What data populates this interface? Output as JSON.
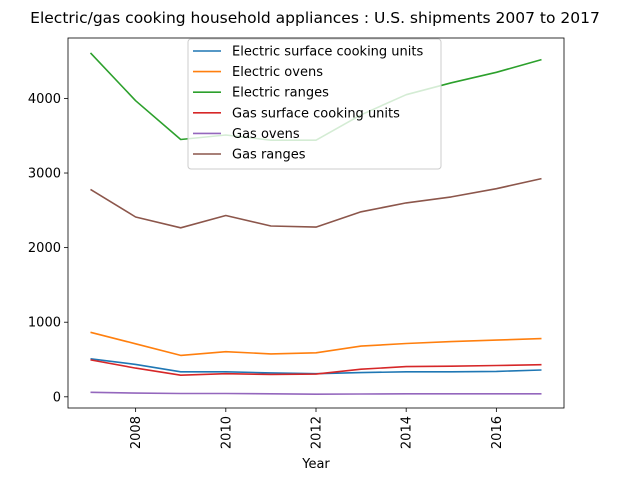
{
  "chart_data": {
    "type": "line",
    "title": "Electric/gas cooking household appliances : U.S. shipments 2007 to 2017",
    "xlabel": "Year",
    "ylabel": "",
    "x": [
      2007,
      2008,
      2009,
      2010,
      2011,
      2012,
      2013,
      2014,
      2015,
      2016,
      2017
    ],
    "xlim": [
      2006.5,
      2017.5
    ],
    "ylim": [
      -150,
      4810
    ],
    "x_ticks": [
      2008,
      2010,
      2012,
      2014,
      2016
    ],
    "y_ticks": [
      0,
      1000,
      2000,
      3000,
      4000
    ],
    "x_tick_rotation": "vertical",
    "grid": false,
    "legend_position": "top-center",
    "series": [
      {
        "name": "Electric surface cooking units",
        "color": "#1f77b4",
        "values": [
          510,
          435,
          335,
          335,
          320,
          310,
          325,
          335,
          335,
          340,
          360
        ]
      },
      {
        "name": "Electric ovens",
        "color": "#ff7f0e",
        "values": [
          865,
          710,
          555,
          605,
          575,
          590,
          680,
          715,
          740,
          760,
          780
        ]
      },
      {
        "name": "Electric ranges",
        "color": "#2ca02c",
        "values": [
          4610,
          3970,
          3450,
          3510,
          3440,
          3440,
          3780,
          4050,
          4210,
          4350,
          4520
        ]
      },
      {
        "name": "Gas surface cooking units",
        "color": "#d62728",
        "values": [
          495,
          385,
          290,
          310,
          300,
          305,
          370,
          405,
          410,
          420,
          430
        ]
      },
      {
        "name": "Gas ovens",
        "color": "#9467bd",
        "values": [
          60,
          50,
          45,
          45,
          40,
          35,
          38,
          40,
          40,
          40,
          40
        ]
      },
      {
        "name": "Gas ranges",
        "color": "#8c564b",
        "values": [
          2780,
          2410,
          2265,
          2430,
          2290,
          2275,
          2480,
          2600,
          2680,
          2790,
          2925
        ]
      }
    ]
  }
}
